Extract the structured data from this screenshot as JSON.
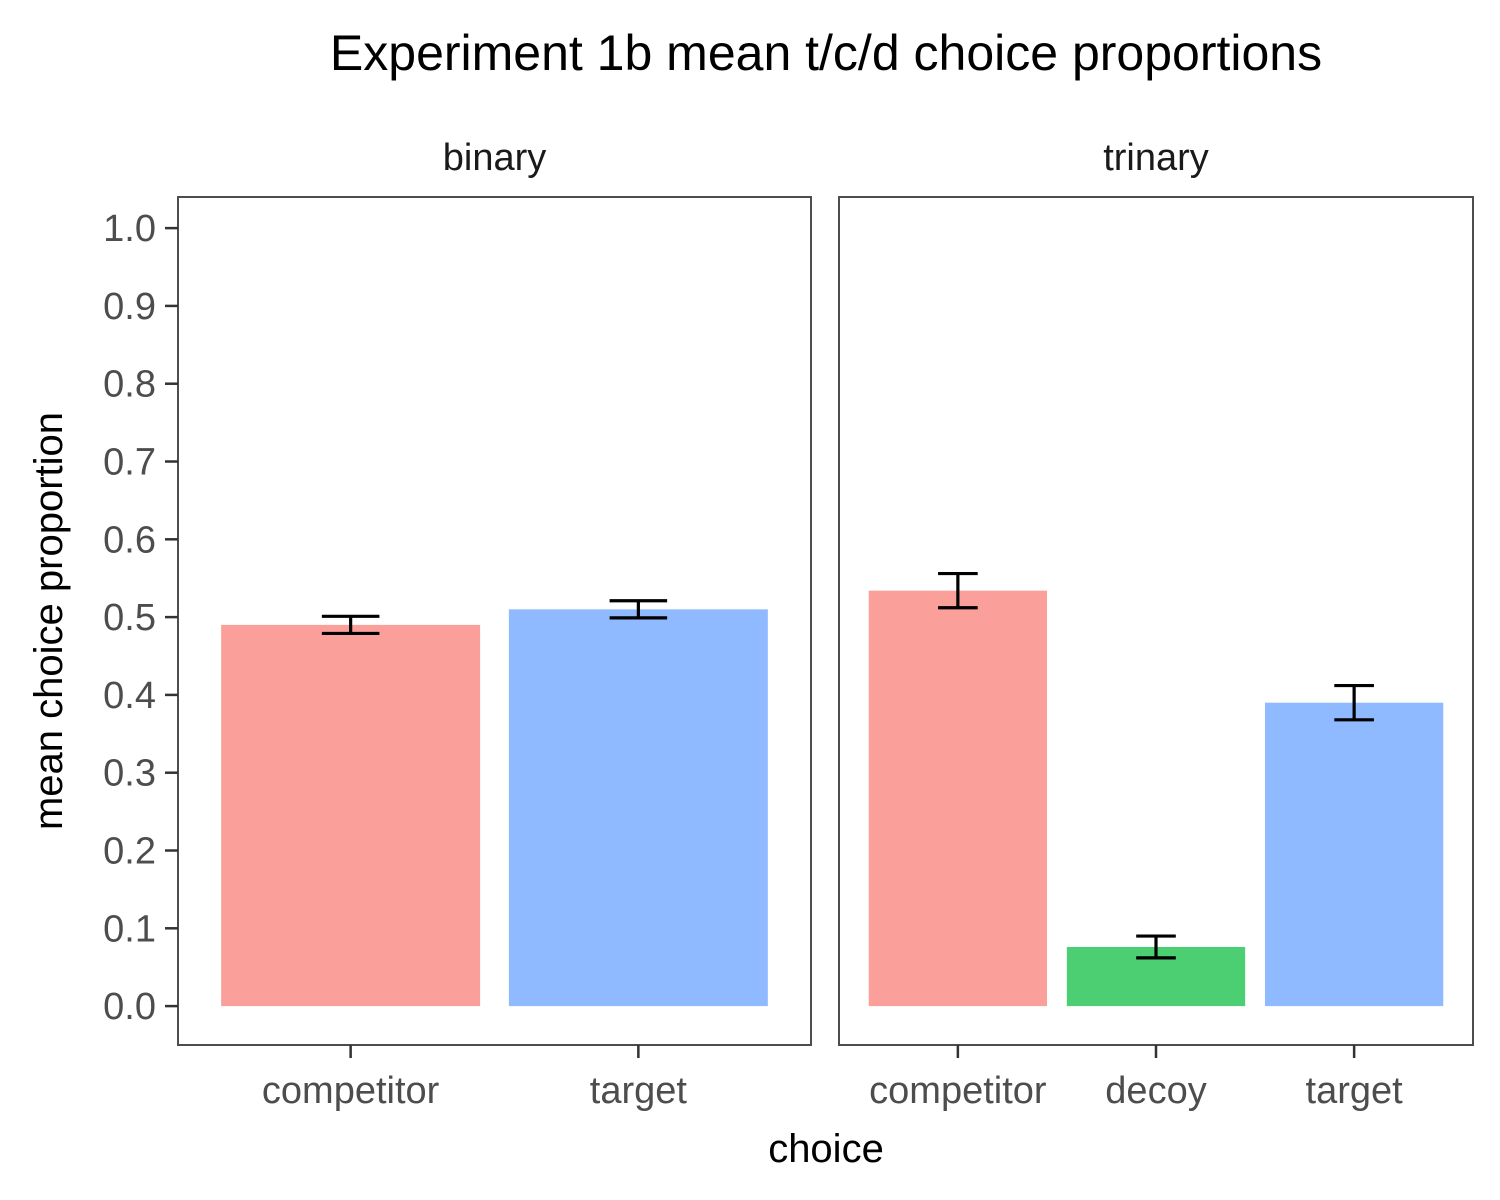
{
  "chart_data": {
    "type": "bar",
    "title": "Experiment 1b mean t/c/d choice proportions",
    "xlabel": "choice",
    "ylabel": "mean choice proportion",
    "ylim": [
      -0.05,
      1.04
    ],
    "yticks": [
      "0.0",
      "0.1",
      "0.2",
      "0.3",
      "0.4",
      "0.5",
      "0.6",
      "0.7",
      "0.8",
      "0.9",
      "1.0"
    ],
    "grid": false,
    "colors": {
      "competitor": "#F8766D",
      "decoy": "#00BA38",
      "target": "#619CFF",
      "bar_opacity": 0.7,
      "panel_border": "#4d4d4d",
      "error_bar": "#000000"
    },
    "panels": [
      {
        "name": "binary",
        "categories": [
          "competitor",
          "target"
        ],
        "values": [
          0.49,
          0.51
        ],
        "error_low": [
          0.479,
          0.499
        ],
        "error_high": [
          0.501,
          0.521
        ]
      },
      {
        "name": "trinary",
        "categories": [
          "competitor",
          "decoy",
          "target"
        ],
        "values": [
          0.534,
          0.076,
          0.39
        ],
        "error_low": [
          0.512,
          0.062,
          0.368
        ],
        "error_high": [
          0.556,
          0.09,
          0.412
        ]
      }
    ]
  }
}
